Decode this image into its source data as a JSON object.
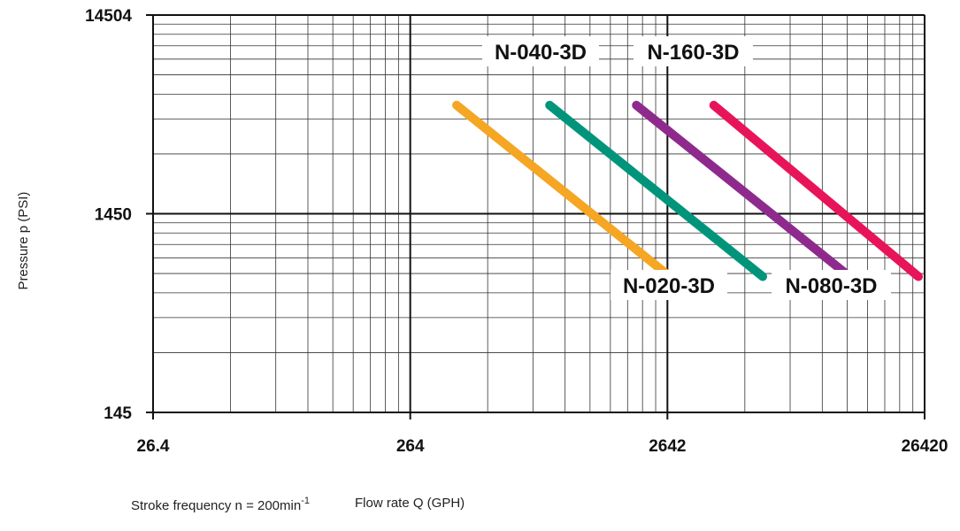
{
  "chart_data": {
    "type": "line",
    "x_scale": "log",
    "y_scale": "log",
    "xlim": [
      26.4,
      26420
    ],
    "ylim": [
      145,
      14504
    ],
    "x_ticks": [
      "26.4",
      "264",
      "2642",
      "26420"
    ],
    "y_ticks": [
      "145",
      "1450",
      "14504"
    ],
    "ylabel": "Pressure p (PSI)",
    "xlabel": "Flow rate Q (GPH)",
    "grid": true,
    "series": [
      {
        "name": "N-020-3D",
        "color": "#F5A623",
        "x": [
          400,
          2700
        ],
        "y": [
          5100,
          700
        ]
      },
      {
        "name": "N-040-3D",
        "color": "#00957A",
        "x": [
          920,
          6200
        ],
        "y": [
          5100,
          700
        ]
      },
      {
        "name": "N-160-3D",
        "color": "#8E2A8E",
        "x": [
          2000,
          13500
        ],
        "y": [
          5100,
          700
        ]
      },
      {
        "name": "N-080-3D",
        "color": "#E8145A",
        "x": [
          4000,
          25000
        ],
        "y": [
          5100,
          700
        ]
      }
    ]
  },
  "footer": {
    "stroke_prefix": "Stroke frequency n = 200min",
    "stroke_exponent": "-1",
    "xlabel": "Flow rate Q (GPH)"
  }
}
